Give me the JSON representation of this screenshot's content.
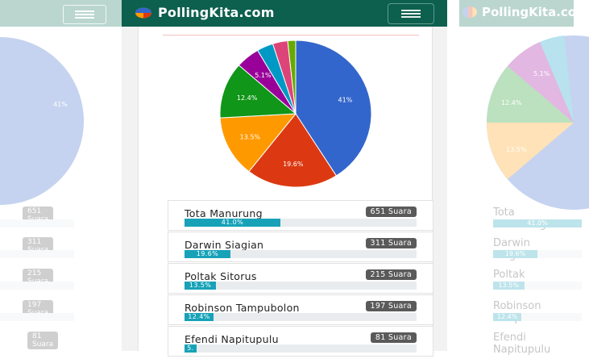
{
  "brand": {
    "name": "PollingKita.com"
  },
  "icons": {
    "menu": "hamburger-icon",
    "logo": "pie-logo-icon"
  },
  "colors": {
    "header": "#0d5f4e",
    "bar": "#17a2b8",
    "badge": "#5a5a5a"
  },
  "chart_data": {
    "type": "pie",
    "slices": [
      {
        "value": 41.0,
        "label": "41%",
        "color": "#3366cc"
      },
      {
        "value": 19.6,
        "label": "19.6%",
        "color": "#dc3912"
      },
      {
        "value": 13.5,
        "label": "13.5%",
        "color": "#ff9900"
      },
      {
        "value": 12.4,
        "label": "12.4%",
        "color": "#109618"
      },
      {
        "value": 5.1,
        "label": "5.1%",
        "color": "#990099"
      },
      {
        "value": 3.5,
        "label": "",
        "color": "#0099c6"
      },
      {
        "value": 3.2,
        "label": "",
        "color": "#dd4477"
      },
      {
        "value": 1.7,
        "label": "",
        "color": "#66aa00"
      }
    ]
  },
  "candidates": [
    {
      "name": "Tota Manurung",
      "votes": "651 Suara",
      "percent_label": "41.0%",
      "percent": 41.0
    },
    {
      "name": "Darwin Siagian",
      "votes": "311 Suara",
      "percent_label": "19.6%",
      "percent": 19.6
    },
    {
      "name": "Poltak Sitorus",
      "votes": "215 Suara",
      "percent_label": "13.5%",
      "percent": 13.5
    },
    {
      "name": "Robinson Tampubolon",
      "votes": "197 Suara",
      "percent_label": "12.4%",
      "percent": 12.4
    },
    {
      "name": "Efendi Napitupulu",
      "votes": "81 Suara",
      "percent_label": "5.",
      "percent": 5.1
    }
  ]
}
